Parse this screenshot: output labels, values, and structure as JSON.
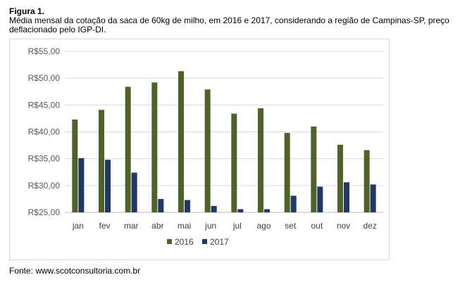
{
  "figure": {
    "label": "Figura 1.",
    "caption": "Média mensal da cotação da saca de 60kg de milho, em 2016 e 2017, considerando a região de Campinas-SP, preço deflacionado pelo IGP-DI.",
    "source": "Fonte: www.scotconsultoria.com.br"
  },
  "chart_data": {
    "type": "bar",
    "title": "",
    "xlabel": "",
    "ylabel": "",
    "categories": [
      "jan",
      "fev",
      "mar",
      "abr",
      "mai",
      "jun",
      "jul",
      "ago",
      "set",
      "out",
      "nov",
      "dez"
    ],
    "series": [
      {
        "name": "2016",
        "color": "#4f6228",
        "values": [
          42.3,
          44.1,
          48.4,
          49.2,
          51.3,
          47.9,
          43.4,
          44.4,
          39.8,
          41.0,
          37.6,
          36.6
        ]
      },
      {
        "name": "2017",
        "color": "#1f3864",
        "values": [
          35.1,
          34.8,
          32.4,
          27.5,
          27.3,
          26.2,
          25.6,
          25.6,
          28.1,
          29.8,
          30.6,
          30.2
        ]
      }
    ],
    "ylim": [
      25,
      55
    ],
    "yticks": [
      25,
      30,
      35,
      40,
      45,
      50,
      55
    ],
    "ytick_labels": [
      "R$25,00",
      "R$30,00",
      "R$35,00",
      "R$40,00",
      "R$45,00",
      "R$50,00",
      "R$55,00"
    ],
    "grid": true,
    "legend_position": "bottom-center"
  }
}
